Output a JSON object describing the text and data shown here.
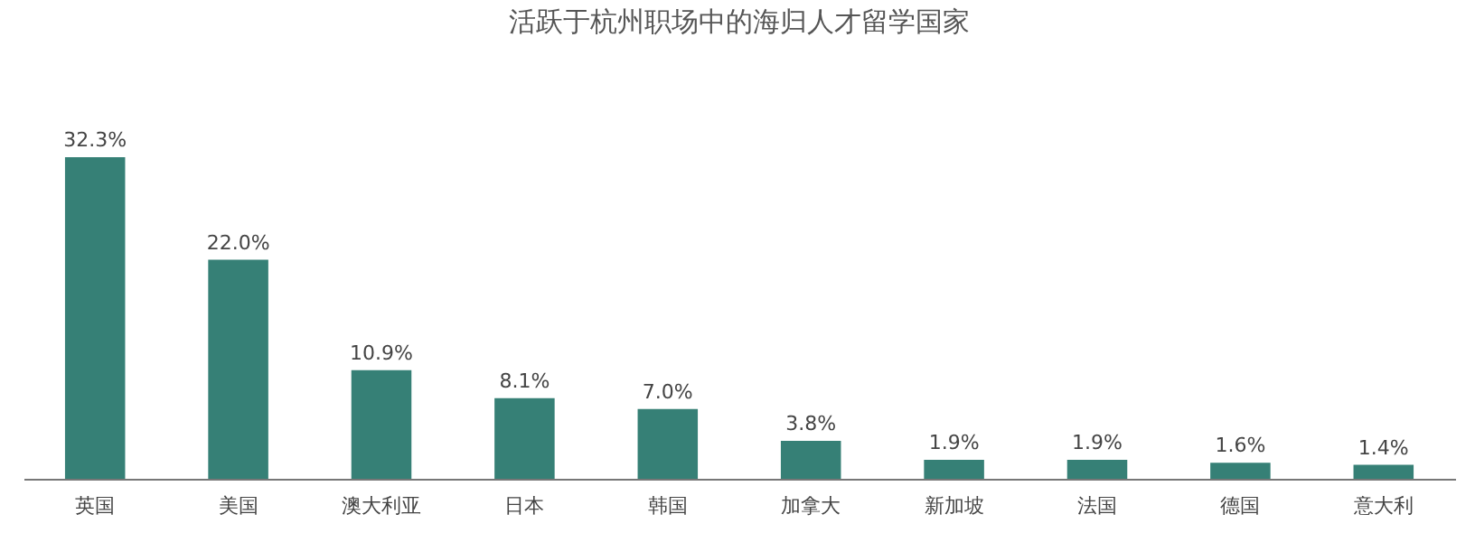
{
  "chart_data": {
    "type": "bar",
    "title": "活跃于杭州职场中的海归人才留学国家",
    "categories": [
      "英国",
      "美国",
      "澳大利亚",
      "日本",
      "韩国",
      "加拿大",
      "新加坡",
      "法国",
      "德国",
      "意大利"
    ],
    "values": [
      32.3,
      22.0,
      10.9,
      8.1,
      7.0,
      3.8,
      1.9,
      1.9,
      1.6,
      1.4
    ],
    "value_labels": [
      "32.3%",
      "22.0%",
      "10.9%",
      "8.1%",
      "7.0%",
      "3.8%",
      "1.9%",
      "1.9%",
      "1.6%",
      "1.4%"
    ],
    "color": "#368076"
  }
}
